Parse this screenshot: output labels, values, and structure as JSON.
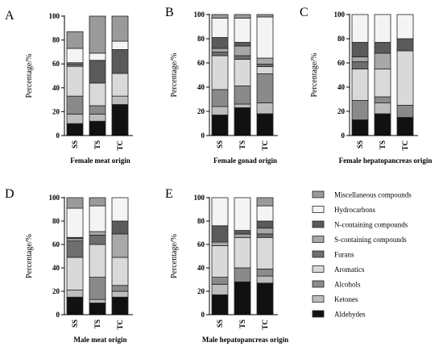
{
  "chart_data": {
    "type": "bar",
    "stacked": true,
    "component_order": [
      "Aldehydes",
      "Ketones",
      "Alcohols",
      "Aromatics",
      "Furans",
      "S-containing compounds",
      "N-containing compounds",
      "Hydrocarbons",
      "Miscellaneous compounds"
    ],
    "legend_order": [
      "Miscellaneous compounds",
      "Hydrocarbons",
      "N-containing compounds",
      "S-containing compounds",
      "Furans",
      "Aromatics",
      "Alcohols",
      "Ketones",
      "Aldehydes"
    ],
    "component_colors": {
      "Aldehydes": "#111111",
      "Ketones": "#bdbdbd",
      "Alcohols": "#8a8a8a",
      "Aromatics": "#d9d9d9",
      "Furans": "#6e6e6e",
      "S-containing compounds": "#a8a8a8",
      "N-containing compounds": "#5a5a5a",
      "Hydrocarbons": "#f4f4f4",
      "Miscellaneous compounds": "#9a9a9a"
    },
    "legend_position": "right",
    "ylim": [
      0,
      100
    ],
    "yticks": [
      0,
      20,
      40,
      60,
      80,
      100
    ],
    "panels": [
      {
        "letter": "A",
        "title": "Female meat origin",
        "ylabel": "Percentage/%",
        "categories": [
          "SS",
          "TS",
          "TC"
        ],
        "series": [
          {
            "name": "Aldehydes",
            "values": [
              10,
              12,
              26
            ]
          },
          {
            "name": "Ketones",
            "values": [
              8,
              6,
              7
            ]
          },
          {
            "name": "Alcohols",
            "values": [
              15,
              7,
              0
            ]
          },
          {
            "name": "Aromatics",
            "values": [
              25,
              19,
              19
            ]
          },
          {
            "name": "Furans",
            "values": [
              2,
              0,
              0
            ]
          },
          {
            "name": "S-containing compounds",
            "values": [
              1,
              0,
              0
            ]
          },
          {
            "name": "N-containing compounds",
            "values": [
              0,
              19,
              20
            ]
          },
          {
            "name": "Hydrocarbons",
            "values": [
              12,
              6,
              7
            ]
          },
          {
            "name": "Miscellaneous compounds",
            "values": [
              14,
              31,
              21
            ]
          }
        ]
      },
      {
        "letter": "B",
        "title": "Female gonad origin",
        "ylabel": "Percentage/%",
        "categories": [
          "SS",
          "TS",
          "TC"
        ],
        "series": [
          {
            "name": "Aldehydes",
            "values": [
              17,
              23,
              18
            ]
          },
          {
            "name": "Ketones",
            "values": [
              7,
              3,
              9
            ]
          },
          {
            "name": "Alcohols",
            "values": [
              14,
              15,
              24
            ]
          },
          {
            "name": "Aromatics",
            "values": [
              28,
              22,
              6
            ]
          },
          {
            "name": "Furans",
            "values": [
              3,
              3,
              2
            ]
          },
          {
            "name": "S-containing compounds",
            "values": [
              3,
              8,
              5
            ]
          },
          {
            "name": "N-containing compounds",
            "values": [
              9,
              3,
              0
            ]
          },
          {
            "name": "Hydrocarbons",
            "values": [
              16,
              20,
              34
            ]
          },
          {
            "name": "Miscellaneous compounds",
            "values": [
              3,
              3,
              2
            ]
          }
        ]
      },
      {
        "letter": "C",
        "title": "Female hepatopancreas origin",
        "ylabel": "Percentage/%",
        "categories": [
          "SS",
          "TS",
          "TC"
        ],
        "series": [
          {
            "name": "Aldehydes",
            "values": [
              13,
              18,
              15
            ]
          },
          {
            "name": "Ketones",
            "values": [
              0,
              9,
              0
            ]
          },
          {
            "name": "Alcohols",
            "values": [
              16,
              5,
              10
            ]
          },
          {
            "name": "Aromatics",
            "values": [
              26,
              23,
              45
            ]
          },
          {
            "name": "Furans",
            "values": [
              6,
              0,
              0
            ]
          },
          {
            "name": "S-containing compounds",
            "values": [
              4,
              13,
              0
            ]
          },
          {
            "name": "N-containing compounds",
            "values": [
              12,
              9,
              10
            ]
          },
          {
            "name": "Hydrocarbons",
            "values": [
              23,
              23,
              20
            ]
          },
          {
            "name": "Miscellaneous compounds",
            "values": [
              0,
              0,
              0
            ]
          }
        ]
      },
      {
        "letter": "D",
        "title": "Male meat origin",
        "ylabel": "Percentage/%",
        "categories": [
          "SS",
          "TS",
          "TC"
        ],
        "series": [
          {
            "name": "Aldehydes",
            "values": [
              15,
              10,
              15
            ]
          },
          {
            "name": "Ketones",
            "values": [
              6,
              3,
              5
            ]
          },
          {
            "name": "Alcohols",
            "values": [
              0,
              19,
              5
            ]
          },
          {
            "name": "Aromatics",
            "values": [
              28,
              28,
              24
            ]
          },
          {
            "name": "Furans",
            "values": [
              14,
              8,
              0
            ]
          },
          {
            "name": "S-containing compounds",
            "values": [
              2,
              3,
              20
            ]
          },
          {
            "name": "N-containing compounds",
            "values": [
              1,
              0,
              11
            ]
          },
          {
            "name": "Hydrocarbons",
            "values": [
              25,
              22,
              20
            ]
          },
          {
            "name": "Miscellaneous compounds",
            "values": [
              9,
              7,
              0
            ]
          }
        ]
      },
      {
        "letter": "E",
        "title": "Male hepatopancreas origin",
        "ylabel": "Percentage/%",
        "categories": [
          "SS",
          "TS",
          "TC"
        ],
        "series": [
          {
            "name": "Aldehydes",
            "values": [
              17,
              28,
              27
            ]
          },
          {
            "name": "Ketones",
            "values": [
              9,
              0,
              6
            ]
          },
          {
            "name": "Alcohols",
            "values": [
              6,
              12,
              6
            ]
          },
          {
            "name": "Aromatics",
            "values": [
              27,
              26,
              27
            ]
          },
          {
            "name": "Furans",
            "values": [
              0,
              0,
              3
            ]
          },
          {
            "name": "S-containing compounds",
            "values": [
              3,
              3,
              5
            ]
          },
          {
            "name": "N-containing compounds",
            "values": [
              14,
              3,
              6
            ]
          },
          {
            "name": "Hydrocarbons",
            "values": [
              24,
              28,
              13
            ]
          },
          {
            "name": "Miscellaneous compounds",
            "values": [
              0,
              0,
              7
            ]
          }
        ]
      }
    ]
  }
}
